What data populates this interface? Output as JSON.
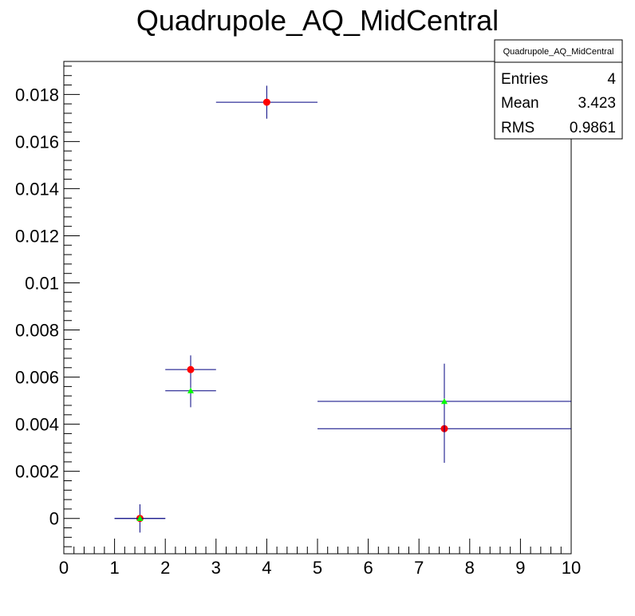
{
  "chart_data": {
    "type": "scatter",
    "title": "Quadrupole_AQ_MidCentral",
    "xlabel": "",
    "ylabel": "",
    "xlim": [
      0,
      10
    ],
    "ylim": [
      -0.0015,
      0.0194
    ],
    "x_ticks": [
      0,
      1,
      2,
      3,
      4,
      5,
      6,
      7,
      8,
      9,
      10
    ],
    "y_ticks": [
      0,
      0.002,
      0.004,
      0.006,
      0.008,
      0.01,
      0.012,
      0.014,
      0.016,
      0.018
    ],
    "y_tick_labels": [
      "0",
      "0.002",
      "0.004",
      "0.006",
      "0.008",
      "0.01",
      "0.012",
      "0.014",
      "0.016",
      "0.018"
    ],
    "grid": false,
    "series": [
      {
        "marker": "circle",
        "color": "#ff0000",
        "points": [
          {
            "x": 1.5,
            "y": 0.0,
            "xerr": 0.5,
            "yerr": 0.0006
          },
          {
            "x": 2.5,
            "y": 0.00632,
            "xerr": 0.5,
            "yerr": 0.0006
          },
          {
            "x": 4.0,
            "y": 0.01767,
            "xerr": 1.0,
            "yerr": 0.0007
          },
          {
            "x": 7.5,
            "y": 0.00381,
            "xerr": 2.5,
            "yerr": 0.00145
          }
        ]
      },
      {
        "marker": "triangle",
        "color": "#00ff00",
        "points": [
          {
            "x": 1.5,
            "y": 0.0,
            "xerr": 0.5,
            "yerr": 0.0
          },
          {
            "x": 2.5,
            "y": 0.00542,
            "xerr": 0.5,
            "yerr": 0.0007
          },
          {
            "x": 7.5,
            "y": 0.00497,
            "xerr": 2.5,
            "yerr": 0.0016
          }
        ]
      }
    ],
    "error_bar_color": "#000080",
    "stats_box": {
      "title": "Quadrupole_AQ_MidCentral",
      "rows": [
        {
          "label": "Entries",
          "value": "4"
        },
        {
          "label": "Mean",
          "value": "3.423"
        },
        {
          "label": "RMS",
          "value": "0.9861"
        }
      ]
    }
  }
}
